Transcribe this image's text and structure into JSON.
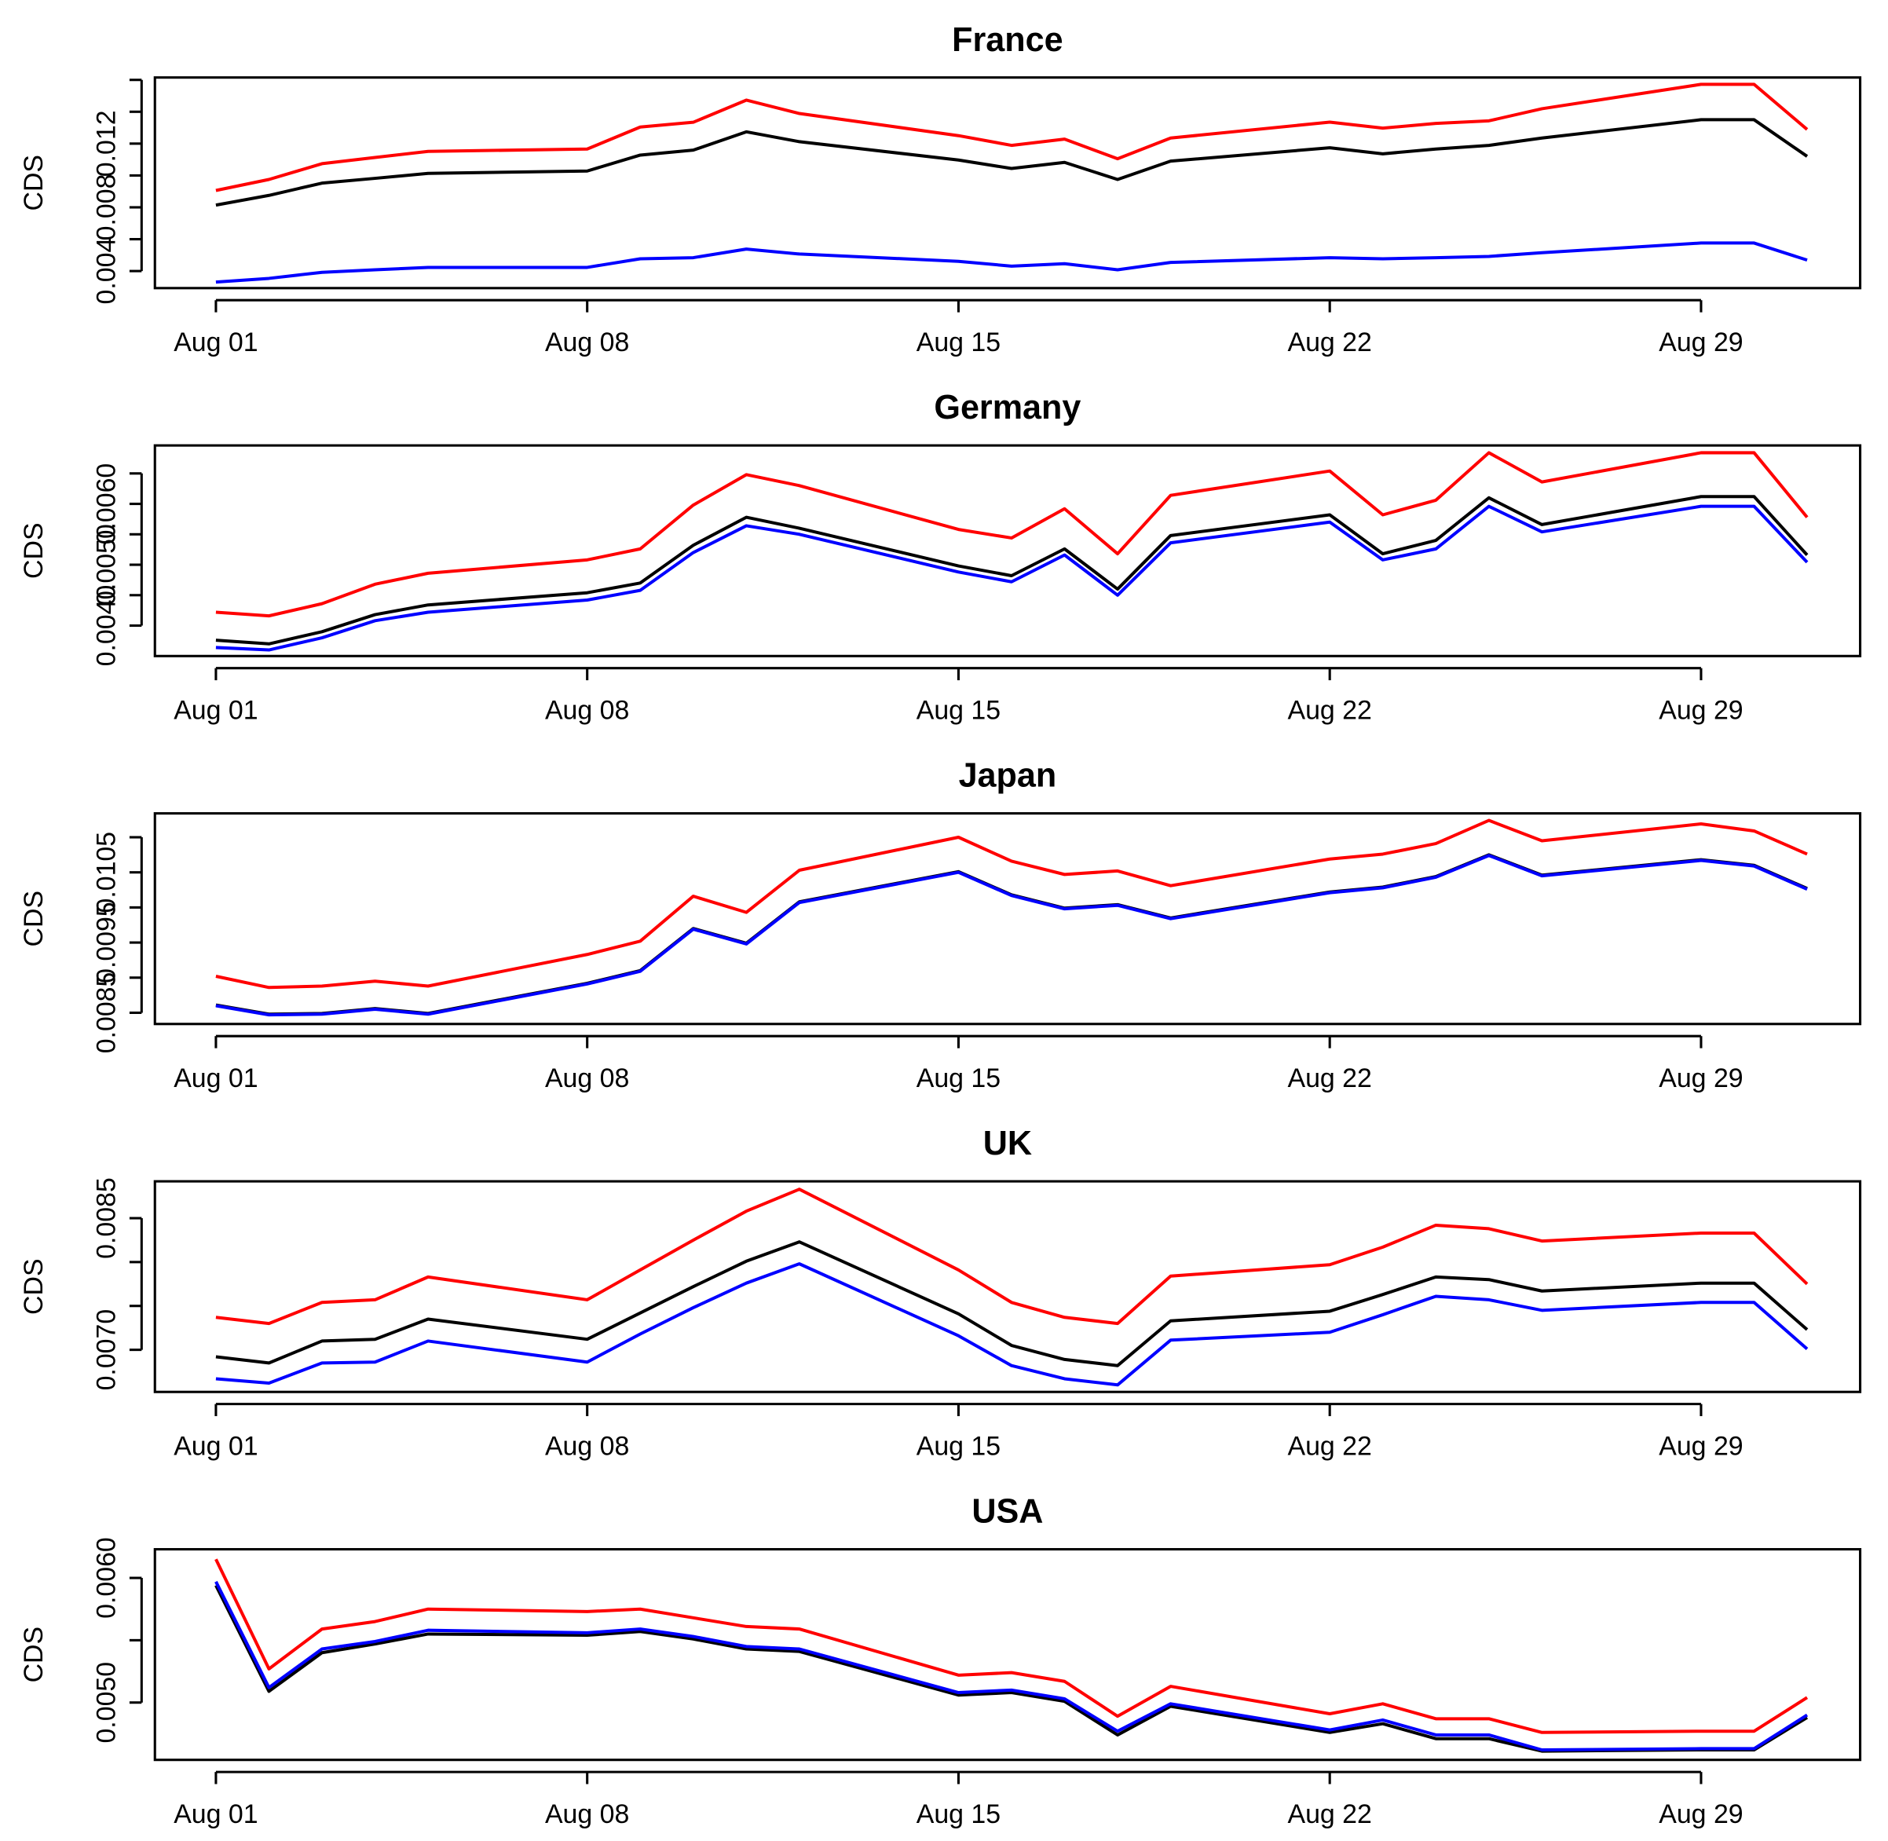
{
  "chart_data": [
    {
      "type": "line",
      "title": "France",
      "ylabel": "CDS",
      "x": [
        1,
        2,
        3,
        4,
        5,
        8,
        9,
        10,
        11,
        12,
        15,
        16,
        17,
        18,
        19,
        22,
        23,
        24,
        25,
        26,
        29,
        30,
        31
      ],
      "xlim": [
        -0.15,
        32
      ],
      "xticks": [
        {
          "value": 1,
          "label": "Aug 01"
        },
        {
          "value": 8,
          "label": "Aug 08"
        },
        {
          "value": 15,
          "label": "Aug 15"
        },
        {
          "value": 22,
          "label": "Aug 22"
        },
        {
          "value": 29,
          "label": "Aug 29"
        }
      ],
      "ylim": [
        0.00293,
        0.01615
      ],
      "yticks": [
        0.004,
        {
          "value": 0.006,
          "label": null
        },
        0.008,
        {
          "value": 0.01,
          "label": null
        },
        0.012,
        {
          "value": 0.014,
          "label": null
        },
        {
          "value": 0.016,
          "label": null
        }
      ],
      "series": [
        {
          "color": "#ff0000",
          "values": [
            0.00906,
            0.00975,
            0.01074,
            0.01113,
            0.01151,
            0.01166,
            0.01304,
            0.01334,
            0.01473,
            0.01389,
            0.0125,
            0.01189,
            0.01228,
            0.01105,
            0.01235,
            0.01335,
            0.01297,
            0.01327,
            0.01343,
            0.01419,
            0.01572,
            0.01572,
            0.01289
          ]
        },
        {
          "color": "#000000",
          "values": [
            0.00814,
            0.00875,
            0.00952,
            0.00982,
            0.01013,
            0.01028,
            0.01128,
            0.01159,
            0.01274,
            0.01212,
            0.01097,
            0.01044,
            0.01082,
            0.00975,
            0.0109,
            0.01174,
            0.01136,
            0.01166,
            0.01189,
            0.01235,
            0.0135,
            0.0135,
            0.0112
          ]
        },
        {
          "color": "#0000ff",
          "values": [
            0.00331,
            0.00354,
            0.00392,
            0.00408,
            0.00423,
            0.00423,
            0.00477,
            0.00484,
            0.00538,
            0.00507,
            0.00461,
            0.00431,
            0.00446,
            0.00408,
            0.00454,
            0.00484,
            0.00477,
            0.00484,
            0.00492,
            0.00515,
            0.00576,
            0.00576,
            0.00469
          ]
        }
      ]
    },
    {
      "type": "line",
      "title": "Germany",
      "ylabel": "CDS",
      "x": [
        1,
        2,
        3,
        4,
        5,
        8,
        9,
        10,
        11,
        12,
        15,
        16,
        17,
        18,
        19,
        22,
        23,
        24,
        25,
        26,
        29,
        30,
        31
      ],
      "xlim": [
        -0.15,
        32
      ],
      "xticks": [
        {
          "value": 1,
          "label": "Aug 01"
        },
        {
          "value": 8,
          "label": "Aug 08"
        },
        {
          "value": 15,
          "label": "Aug 15"
        },
        {
          "value": 22,
          "label": "Aug 22"
        },
        {
          "value": 29,
          "label": "Aug 29"
        }
      ],
      "ylim": [
        0.0035,
        0.00696
      ],
      "yticks": [
        {
          "value": 0.004,
          "label": "0.0040"
        },
        {
          "value": 0.0045,
          "label": null
        },
        {
          "value": 0.005,
          "label": "0.0050"
        },
        {
          "value": 0.0055,
          "label": null
        },
        {
          "value": 0.006,
          "label": "0.0060"
        },
        {
          "value": 0.0065,
          "label": null
        }
      ],
      "series": [
        {
          "color": "#ff0000",
          "values": [
            0.00422,
            0.00416,
            0.00436,
            0.00468,
            0.00486,
            0.00508,
            0.00526,
            0.00598,
            0.00648,
            0.0063,
            0.00558,
            0.00544,
            0.00592,
            0.00518,
            0.00614,
            0.00654,
            0.00582,
            0.00606,
            0.00684,
            0.00636,
            0.00684,
            0.00684,
            0.00578
          ]
        },
        {
          "color": "#000000",
          "values": [
            0.00376,
            0.0037,
            0.0039,
            0.00418,
            0.00434,
            0.00454,
            0.0047,
            0.00532,
            0.00578,
            0.0056,
            0.00498,
            0.00482,
            0.00526,
            0.0046,
            0.00548,
            0.00582,
            0.00518,
            0.0054,
            0.0061,
            0.00566,
            0.00612,
            0.00612,
            0.00516
          ]
        },
        {
          "color": "#0000ff",
          "values": [
            0.00364,
            0.0036,
            0.0038,
            0.00408,
            0.00422,
            0.00442,
            0.00458,
            0.0052,
            0.00564,
            0.0055,
            0.00488,
            0.00472,
            0.00516,
            0.0045,
            0.00536,
            0.0057,
            0.00508,
            0.00526,
            0.00596,
            0.00554,
            0.00596,
            0.00596,
            0.00504
          ]
        }
      ]
    },
    {
      "type": "line",
      "title": "Japan",
      "ylabel": "CDS",
      "x": [
        1,
        2,
        3,
        4,
        5,
        8,
        9,
        10,
        11,
        12,
        15,
        16,
        17,
        18,
        19,
        22,
        23,
        24,
        25,
        26,
        29,
        30,
        31
      ],
      "xlim": [
        -0.15,
        32
      ],
      "xticks": [
        {
          "value": 1,
          "label": "Aug 01"
        },
        {
          "value": 8,
          "label": "Aug 08"
        },
        {
          "value": 15,
          "label": "Aug 15"
        },
        {
          "value": 22,
          "label": "Aug 22"
        },
        {
          "value": 29,
          "label": "Aug 29"
        }
      ],
      "ylim": [
        0.00834,
        0.01134
      ],
      "yticks": [
        0.0085,
        {
          "value": 0.009,
          "label": null
        },
        0.0095,
        {
          "value": 0.01,
          "label": null
        },
        0.0105,
        {
          "value": 0.011,
          "label": null
        }
      ],
      "series": [
        {
          "color": "#ff0000",
          "values": [
            0.00902,
            0.00886,
            0.00888,
            0.00895,
            0.00888,
            0.00933,
            0.00952,
            0.01016,
            0.00993,
            0.01053,
            0.011,
            0.01066,
            0.01047,
            0.01052,
            0.01031,
            0.01069,
            0.01076,
            0.01091,
            0.01124,
            0.01095,
            0.01119,
            0.01109,
            0.01076
          ]
        },
        {
          "color": "#000000",
          "values": [
            0.00861,
            0.00848,
            0.00849,
            0.00856,
            0.00849,
            0.00892,
            0.0091,
            0.0097,
            0.00949,
            0.01008,
            0.01051,
            0.01018,
            0.00999,
            0.01004,
            0.00985,
            0.01022,
            0.01029,
            0.01044,
            0.01075,
            0.01046,
            0.01068,
            0.0106,
            0.01027
          ]
        },
        {
          "color": "#0000ff",
          "values": [
            0.0086,
            0.00847,
            0.00848,
            0.00855,
            0.00848,
            0.00891,
            0.00909,
            0.00969,
            0.00948,
            0.01007,
            0.0105,
            0.01017,
            0.00998,
            0.01003,
            0.00984,
            0.01021,
            0.01028,
            0.01043,
            0.01074,
            0.01045,
            0.01067,
            0.01059,
            0.01026
          ]
        }
      ]
    },
    {
      "type": "line",
      "title": "UK",
      "ylabel": "CDS",
      "x": [
        1,
        2,
        3,
        4,
        5,
        8,
        9,
        10,
        11,
        12,
        15,
        16,
        17,
        18,
        19,
        22,
        23,
        24,
        25,
        26,
        29,
        30,
        31
      ],
      "xlim": [
        -0.15,
        32
      ],
      "xticks": [
        {
          "value": 1,
          "label": "Aug 01"
        },
        {
          "value": 8,
          "label": "Aug 08"
        },
        {
          "value": 15,
          "label": "Aug 15"
        },
        {
          "value": 22,
          "label": "Aug 22"
        },
        {
          "value": 29,
          "label": "Aug 29"
        }
      ],
      "ylim": [
        0.00652,
        0.00892
      ],
      "yticks": [
        {
          "value": 0.007,
          "label": "0.0070"
        },
        {
          "value": 0.0075,
          "label": null
        },
        {
          "value": 0.008,
          "label": null
        },
        0.0085
      ],
      "series": [
        {
          "color": "#ff0000",
          "values": [
            0.00737,
            0.0073,
            0.00754,
            0.00757,
            0.00783,
            0.00757,
            0.00791,
            0.00825,
            0.00858,
            0.00883,
            0.00791,
            0.00754,
            0.00737,
            0.0073,
            0.00784,
            0.00797,
            0.00817,
            0.00842,
            0.00838,
            0.00824,
            0.00833,
            0.00833,
            0.00775
          ]
        },
        {
          "color": "#000000",
          "values": [
            0.00692,
            0.00685,
            0.0071,
            0.00712,
            0.00735,
            0.00712,
            0.00742,
            0.00772,
            0.00801,
            0.00823,
            0.00741,
            0.00705,
            0.00689,
            0.00682,
            0.00733,
            0.00744,
            0.00763,
            0.00783,
            0.0078,
            0.00767,
            0.00776,
            0.00776,
            0.00723
          ]
        },
        {
          "color": "#0000ff",
          "values": [
            0.00667,
            0.00662,
            0.00685,
            0.00686,
            0.0071,
            0.00686,
            0.00718,
            0.00748,
            0.00776,
            0.00798,
            0.00716,
            0.00682,
            0.00667,
            0.0066,
            0.00711,
            0.0072,
            0.0074,
            0.00761,
            0.00757,
            0.00745,
            0.00754,
            0.00754,
            0.00701
          ]
        }
      ]
    },
    {
      "type": "line",
      "title": "USA",
      "ylabel": "CDS",
      "x": [
        1,
        2,
        3,
        4,
        5,
        8,
        9,
        10,
        11,
        12,
        15,
        16,
        17,
        18,
        19,
        22,
        23,
        24,
        25,
        26,
        29,
        30,
        31
      ],
      "xlim": [
        -0.15,
        32
      ],
      "xticks": [
        {
          "value": 1,
          "label": "Aug 01"
        },
        {
          "value": 8,
          "label": "Aug 08"
        },
        {
          "value": 15,
          "label": "Aug 15"
        },
        {
          "value": 22,
          "label": "Aug 22"
        },
        {
          "value": 29,
          "label": "Aug 29"
        }
      ],
      "ylim": [
        0.00454,
        0.00623
      ],
      "yticks": [
        {
          "value": 0.005,
          "label": "0.0050"
        },
        {
          "value": 0.0055,
          "label": null
        },
        {
          "value": 0.006,
          "label": "0.0060"
        }
      ],
      "series": [
        {
          "color": "#ff0000",
          "values": [
            0.00615,
            0.00527,
            0.00559,
            0.00565,
            0.00575,
            0.00573,
            0.00575,
            0.00568,
            0.00561,
            0.00559,
            0.00522,
            0.00524,
            0.00517,
            0.00489,
            0.00513,
            0.00491,
            0.00499,
            0.00487,
            0.00487,
            0.00476,
            0.00477,
            0.00477,
            0.00504
          ]
        },
        {
          "color": "#000000",
          "values": [
            0.00594,
            0.00509,
            0.0054,
            0.00547,
            0.00555,
            0.00554,
            0.00557,
            0.00551,
            0.00543,
            0.00541,
            0.00506,
            0.00508,
            0.00501,
            0.00474,
            0.00497,
            0.00476,
            0.00483,
            0.00471,
            0.00471,
            0.00461,
            0.00462,
            0.00462,
            0.00488
          ]
        },
        {
          "color": "#0000ff",
          "values": [
            0.00597,
            0.00512,
            0.00543,
            0.00549,
            0.00558,
            0.00556,
            0.00559,
            0.00553,
            0.00545,
            0.00543,
            0.00508,
            0.0051,
            0.00503,
            0.00477,
            0.00499,
            0.00478,
            0.00486,
            0.00474,
            0.00474,
            0.00462,
            0.00463,
            0.00463,
            0.0049
          ]
        }
      ]
    }
  ]
}
